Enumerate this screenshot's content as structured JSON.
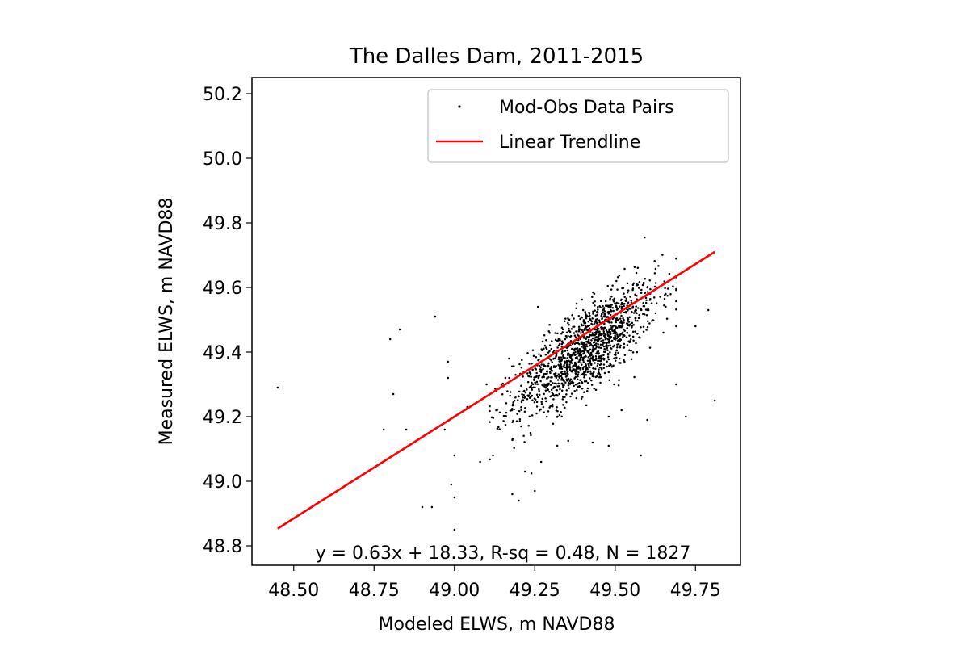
{
  "chart_data": {
    "type": "scatter",
    "title": "The Dalles Dam, 2011-2015",
    "xlabel": "Modeled ELWS, m NAVD88",
    "ylabel": "Measured ELWS, m NAVD88",
    "xlim": [
      48.37,
      49.89
    ],
    "ylim": [
      48.74,
      50.25
    ],
    "x_ticks": [
      48.5,
      48.75,
      49.0,
      49.25,
      49.5,
      49.75
    ],
    "x_tick_labels": [
      "48.50",
      "48.75",
      "49.00",
      "49.25",
      "49.50",
      "49.75"
    ],
    "y_ticks": [
      48.8,
      49.0,
      49.2,
      49.4,
      49.6,
      49.8,
      50.0,
      50.2
    ],
    "y_tick_labels": [
      "48.8",
      "49.0",
      "49.2",
      "49.4",
      "49.6",
      "49.8",
      "50.0",
      "50.2"
    ],
    "legend_position": "top-right",
    "annotation": "y = 0.63x + 18.33, R-sq = 0.48, N = 1827",
    "series": [
      {
        "name": "Mod-Obs Data Pairs",
        "kind": "points",
        "color": "#000000",
        "n_points": 1827,
        "outliers": [
          [
            48.45,
            49.29
          ],
          [
            48.8,
            49.44
          ],
          [
            48.83,
            49.47
          ],
          [
            48.81,
            49.27
          ],
          [
            48.78,
            49.16
          ],
          [
            48.85,
            49.16
          ],
          [
            48.94,
            49.51
          ],
          [
            48.97,
            49.16
          ],
          [
            48.98,
            49.37
          ],
          [
            48.98,
            49.32
          ],
          [
            49.0,
            49.08
          ],
          [
            48.99,
            48.99
          ],
          [
            49.0,
            48.95
          ],
          [
            48.9,
            48.92
          ],
          [
            48.93,
            48.92
          ],
          [
            49.0,
            48.85
          ],
          [
            49.18,
            48.96
          ],
          [
            49.2,
            48.94
          ],
          [
            49.25,
            48.97
          ],
          [
            49.6,
            49.53
          ],
          [
            49.72,
            49.2
          ],
          [
            49.81,
            49.25
          ],
          [
            49.79,
            49.53
          ],
          [
            49.75,
            49.48
          ],
          [
            49.69,
            49.48
          ],
          [
            49.69,
            49.3
          ],
          [
            49.6,
            49.19
          ],
          [
            49.58,
            49.08
          ],
          [
            49.48,
            49.2
          ],
          [
            49.52,
            49.22
          ],
          [
            49.43,
            49.12
          ],
          [
            49.48,
            49.11
          ],
          [
            49.65,
            49.46
          ],
          [
            49.38,
            49.55
          ],
          [
            49.26,
            49.54
          ],
          [
            49.04,
            49.23
          ],
          [
            49.1,
            49.3
          ],
          [
            49.12,
            49.08
          ],
          [
            49.08,
            49.06
          ],
          [
            49.13,
            49.22
          ],
          [
            49.6,
            49.6
          ],
          [
            49.17,
            49.38
          ],
          [
            49.22,
            49.03
          ],
          [
            49.27,
            49.06
          ],
          [
            49.32,
            49.11
          ]
        ],
        "cluster": {
          "center": [
            49.41,
            49.41
          ],
          "x_sd": 0.11,
          "y_sd": 0.085,
          "slope": 0.63,
          "n": 1400
        }
      },
      {
        "name": "Linear Trendline",
        "kind": "line",
        "color": "#ff0000",
        "slope": 0.63,
        "intercept": 18.33,
        "x_range": [
          48.45,
          49.81
        ]
      }
    ]
  }
}
